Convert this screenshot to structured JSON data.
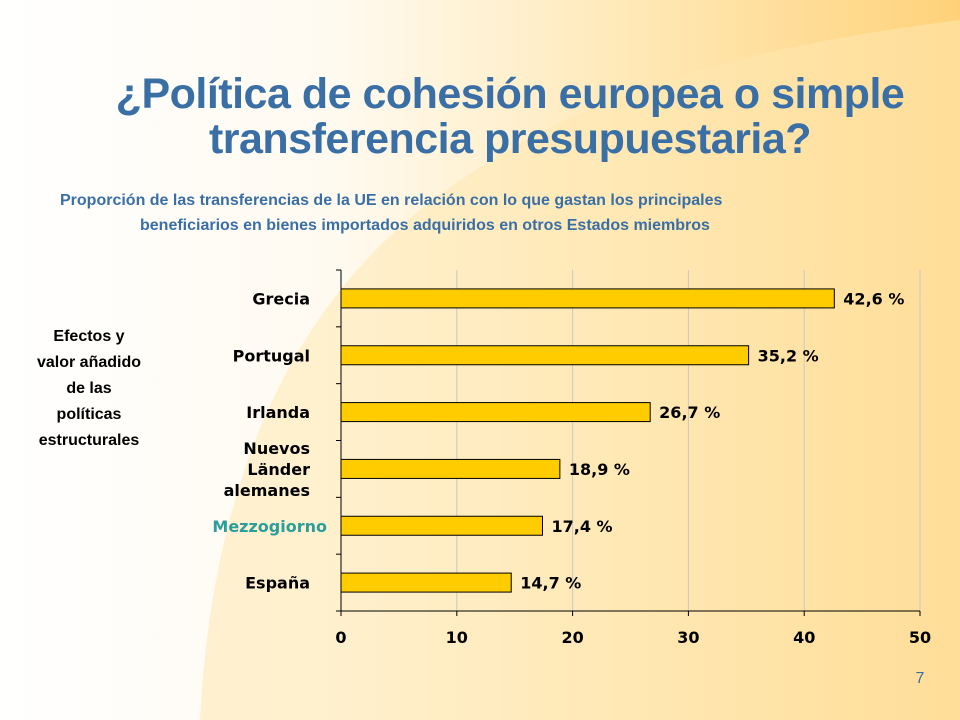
{
  "slide": {
    "title_lines": [
      "¿Política de cohesión europea o simple",
      "transferencia presupuestaria?"
    ],
    "subtitle_lines": [
      "Proporción de las transferencias de la UE en relación con lo que gastan los principales",
      "beneficiarios en bienes importados adquiridos en otros Estados miembros"
    ],
    "side_note_lines": [
      "Efectos y",
      "valor añadido",
      "de las",
      "políticas",
      "estructurales"
    ],
    "page_number": "7"
  },
  "colors": {
    "title": "#3a6fa6",
    "bar_fill": "#ffcc00",
    "bar_stroke": "#000000",
    "highlight_label": "#2a9e9a",
    "grid": "#c8c8c8"
  },
  "chart_data": {
    "type": "bar",
    "orientation": "horizontal",
    "categories": [
      {
        "lines": [
          "Grecia"
        ],
        "highlight": false
      },
      {
        "lines": [
          "Portugal"
        ],
        "highlight": false
      },
      {
        "lines": [
          "Irlanda"
        ],
        "highlight": false
      },
      {
        "lines": [
          "Nuevos",
          "Länder",
          "alemanes"
        ],
        "highlight": false
      },
      {
        "lines": [
          "Mezzogiorno"
        ],
        "highlight": true
      },
      {
        "lines": [
          "España"
        ],
        "highlight": false
      }
    ],
    "values": [
      42.6,
      35.2,
      26.7,
      18.9,
      17.4,
      14.7
    ],
    "data_labels": [
      "42,6 %",
      "35,2 %",
      "26,7 %",
      "18,9 %",
      "17,4 %",
      "14,7 %"
    ],
    "xticks": [
      "0",
      "10",
      "20",
      "30",
      "40",
      "50"
    ],
    "xlim": [
      0,
      50
    ],
    "grid": true,
    "legend": "none"
  }
}
